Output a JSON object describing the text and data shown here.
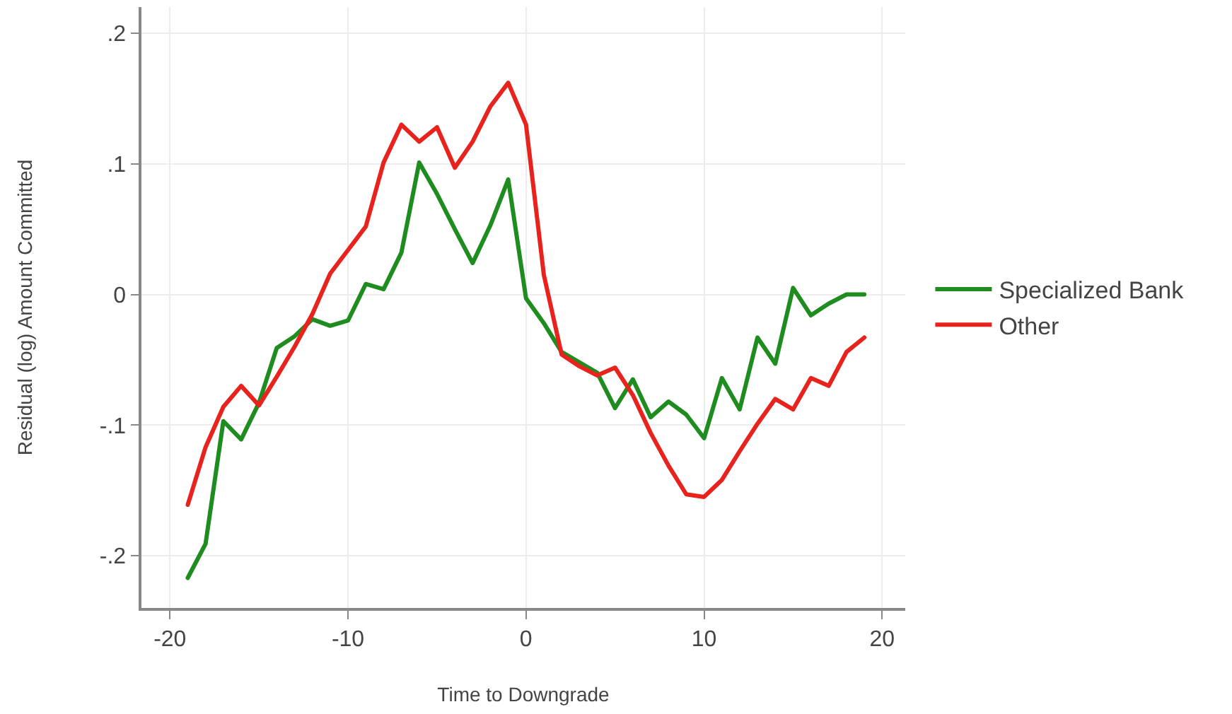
{
  "chart_data": {
    "type": "line",
    "xlabel": "Time to Downgrade",
    "ylabel": "Residual (log) Amount Committed",
    "x": [
      -19,
      -18,
      -17,
      -16,
      -15,
      -14,
      -13,
      -12,
      -11,
      -10,
      -9,
      -8,
      -7,
      -6,
      -5,
      -4,
      -3,
      -2,
      -1,
      0,
      1,
      2,
      3,
      4,
      5,
      6,
      7,
      8,
      9,
      10,
      11,
      12,
      13,
      14,
      15,
      16,
      17,
      18,
      19
    ],
    "series": [
      {
        "name": "Specialized Bank",
        "color": "#1e8c1e",
        "values": [
          -0.217,
          -0.191,
          -0.097,
          -0.111,
          -0.083,
          -0.041,
          -0.032,
          -0.019,
          -0.024,
          -0.02,
          0.008,
          0.004,
          0.032,
          0.101,
          0.077,
          0.05,
          0.024,
          0.053,
          0.088,
          -0.003,
          -0.022,
          -0.044,
          -0.052,
          -0.06,
          -0.087,
          -0.065,
          -0.094,
          -0.082,
          -0.092,
          -0.11,
          -0.064,
          -0.088,
          -0.033,
          -0.053,
          0.005,
          -0.016,
          -0.007,
          0.0,
          0.0
        ]
      },
      {
        "name": "Other",
        "color": "#e8231e",
        "values": [
          -0.161,
          -0.117,
          -0.086,
          -0.07,
          -0.085,
          -0.063,
          -0.04,
          -0.015,
          0.016,
          0.034,
          0.052,
          0.101,
          0.13,
          0.117,
          0.128,
          0.097,
          0.117,
          0.144,
          0.162,
          0.13,
          0.015,
          -0.046,
          -0.055,
          -0.062,
          -0.056,
          -0.077,
          -0.106,
          -0.131,
          -0.153,
          -0.155,
          -0.142,
          -0.12,
          -0.099,
          -0.08,
          -0.088,
          -0.064,
          -0.07,
          -0.044,
          -0.033
        ]
      }
    ],
    "xlim": [
      -21.6,
      21.3
    ],
    "xticks": [
      -20,
      -10,
      0,
      10,
      20
    ],
    "ylim": [
      -0.24,
      0.22
    ],
    "yticks": [
      {
        "value": -0.2,
        "label": "-.2"
      },
      {
        "value": -0.1,
        "label": "-.1"
      },
      0,
      {
        "value": 0.1,
        "label": ".1"
      },
      {
        "value": 0.2,
        "label": ".2"
      }
    ],
    "grid": true,
    "legend": "right",
    "marker": "none",
    "line_style": "solid"
  }
}
